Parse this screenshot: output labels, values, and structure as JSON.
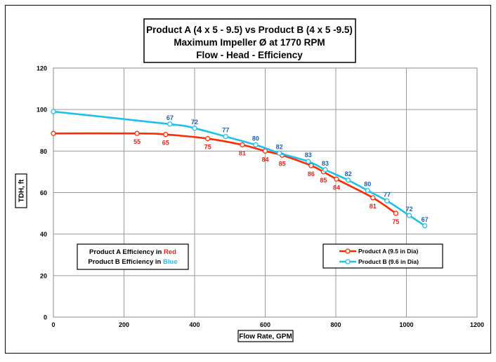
{
  "chart_data": {
    "type": "line",
    "title_lines": [
      "Product A (4 x 5 - 9.5) vs Product B (4 x 5 -9.5)",
      "Maximum Impeller Ø at 1770 RPM",
      "Flow - Head - Efficiency"
    ],
    "xlabel": "Flow Rate, GPM",
    "ylabel": "TDH, ft",
    "xlim": [
      0,
      1200
    ],
    "ylim": [
      0,
      120
    ],
    "x_ticks": [
      0,
      200,
      400,
      600,
      800,
      1000,
      1200
    ],
    "y_ticks": [
      0,
      20,
      40,
      60,
      80,
      100,
      120
    ],
    "grid": true,
    "legend_position": "bottom-right",
    "series": [
      {
        "name": "Product A (9.5 in Dia)",
        "color": "#ff2a00",
        "efficiency_color": "#e8231b",
        "x": [
          0,
          237,
          318,
          437,
          535,
          600,
          648,
          730,
          765,
          802,
          905,
          970
        ],
        "y": [
          88.5,
          88.5,
          88,
          86,
          83,
          80,
          78,
          73,
          70,
          66.5,
          57.5,
          50
        ],
        "efficiency": [
          null,
          "55",
          "65",
          "75",
          "81",
          "84",
          "85",
          "86",
          "85",
          "84",
          "81",
          "75"
        ]
      },
      {
        "name": "Product B (9.6 in Dia)",
        "color": "#1ec0ee",
        "efficiency_color": "#1f5fae",
        "x": [
          0,
          330,
          400,
          488,
          573,
          640,
          722,
          770,
          835,
          890,
          945,
          1008,
          1052
        ],
        "y": [
          99,
          93,
          91,
          87,
          83,
          79,
          75,
          71,
          66,
          61,
          56,
          49,
          44
        ],
        "efficiency": [
          null,
          "67",
          "72",
          "77",
          "80",
          "82",
          "83",
          "83",
          "82",
          "80",
          "77",
          "72",
          "67"
        ]
      }
    ],
    "efficiency_note": {
      "line1_prefix": "Product A Efficiency in ",
      "line1_color_word": "Red",
      "line2_prefix": "Product B Efficiency in ",
      "line2_color_word": "Blue"
    }
  }
}
